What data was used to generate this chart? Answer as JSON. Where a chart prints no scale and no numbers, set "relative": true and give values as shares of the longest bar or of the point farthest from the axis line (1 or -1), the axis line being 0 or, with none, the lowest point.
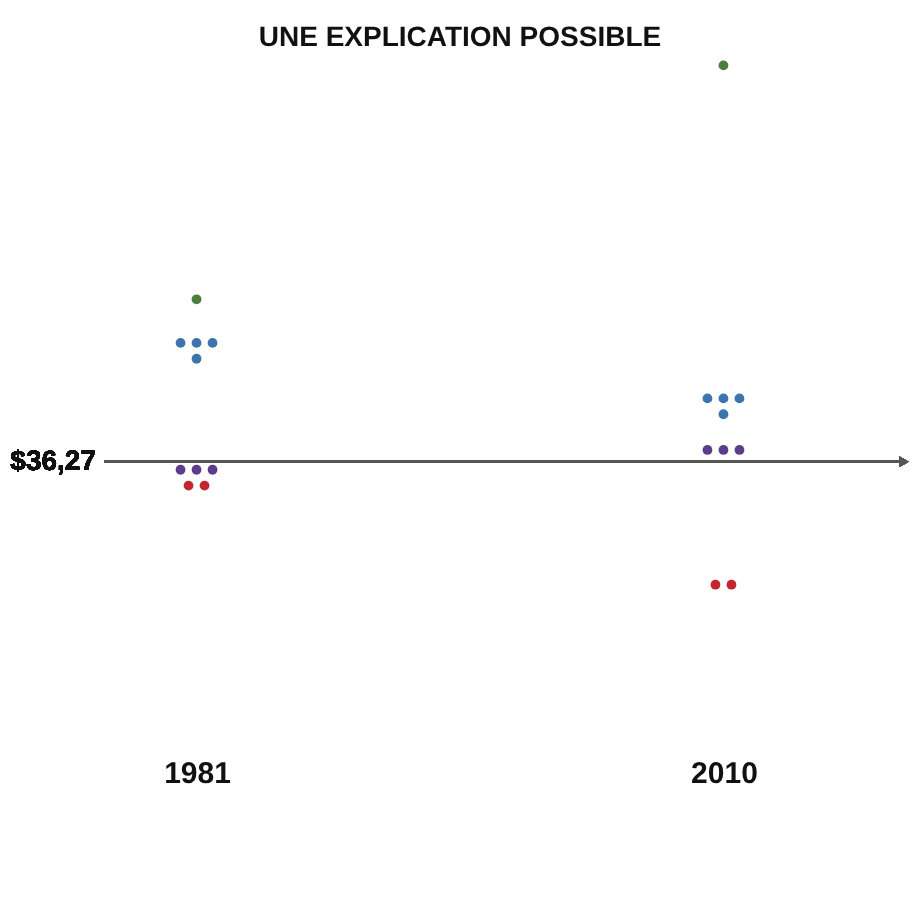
{
  "chart_data": {
    "type": "scatter",
    "title": "UNE EXPLICATION POSSIBLE",
    "relative": true,
    "marker": "circle",
    "categories": [
      "1981",
      "2010"
    ],
    "series": [
      {
        "color": "#4b7d3c",
        "values": [
          0.41,
          1
        ]
      },
      {
        "color": "#3d74ab",
        "values": [
          0.3,
          0.16
        ]
      },
      {
        "color": "#3d74ab",
        "values": [
          0.3,
          0.16
        ]
      },
      {
        "color": "#3d74ab",
        "values": [
          0.3,
          0.16
        ]
      },
      {
        "color": "#3d74ab",
        "values": [
          0.26,
          0.12
        ]
      },
      {
        "color": "#5c3d8c",
        "values": [
          -0.02,
          0.03
        ]
      },
      {
        "color": "#5c3d8c",
        "values": [
          -0.02,
          0.03
        ]
      },
      {
        "color": "#5c3d8c",
        "values": [
          -0.02,
          0.03
        ]
      },
      {
        "color": "#c1272d",
        "values": [
          -0.06,
          -0.31
        ]
      },
      {
        "color": "#c1272d",
        "values": [
          -0.06,
          -0.31
        ]
      }
    ],
    "annotations": [
      "$36,27"
    ]
  }
}
